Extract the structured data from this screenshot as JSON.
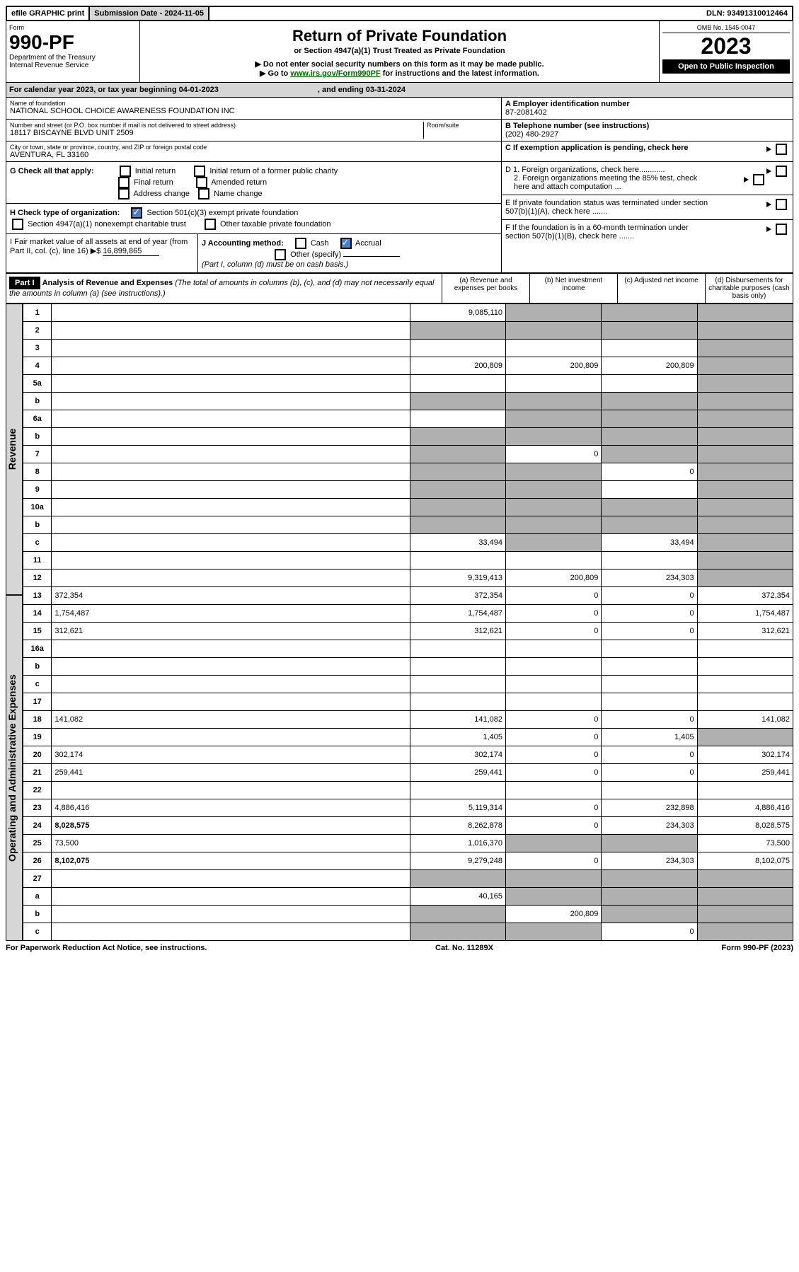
{
  "topbar": {
    "efile": "efile GRAPHIC print",
    "submission_label": "Submission Date - 2024-11-05",
    "dln": "DLN: 93491310012464"
  },
  "header": {
    "form_label": "Form",
    "form_num": "990-PF",
    "dept": "Department of the Treasury",
    "irs": "Internal Revenue Service",
    "title": "Return of Private Foundation",
    "subtitle": "or Section 4947(a)(1) Trust Treated as Private Foundation",
    "note1": "▶ Do not enter social security numbers on this form as it may be made public.",
    "note2_pre": "▶ Go to ",
    "note2_link": "www.irs.gov/Form990PF",
    "note2_post": " for instructions and the latest information.",
    "omb": "OMB No. 1545-0047",
    "year": "2023",
    "open": "Open to Public Inspection"
  },
  "cal": {
    "text": "For calendar year 2023, or tax year beginning 04-01-2023",
    "ending": ", and ending 03-31-2024"
  },
  "entity": {
    "name_label": "Name of foundation",
    "name": "NATIONAL SCHOOL CHOICE AWARENESS FOUNDATION INC",
    "addr_label": "Number and street (or P.O. box number if mail is not delivered to street address)",
    "addr": "18117 BISCAYNE BLVD UNIT 2509",
    "room_label": "Room/suite",
    "city_label": "City or town, state or province, country, and ZIP or foreign postal code",
    "city": "AVENTURA, FL  33160",
    "ein_label": "A Employer identification number",
    "ein": "87-2081402",
    "phone_label": "B Telephone number (see instructions)",
    "phone": "(202) 480-2927",
    "c_label": "C If exemption application is pending, check here"
  },
  "checks": {
    "g_label": "G Check all that apply:",
    "g_initial": "Initial return",
    "g_initial_former": "Initial return of a former public charity",
    "g_final": "Final return",
    "g_amended": "Amended return",
    "g_addr": "Address change",
    "g_name": "Name change",
    "h_label": "H Check type of organization:",
    "h_501c3": "Section 501(c)(3) exempt private foundation",
    "h_4947": "Section 4947(a)(1) nonexempt charitable trust",
    "h_other_tax": "Other taxable private foundation",
    "i_label": "I Fair market value of all assets at end of year (from Part II, col. (c), line 16) ▶$",
    "i_value": "16,899,865",
    "j_label": "J Accounting method:",
    "j_cash": "Cash",
    "j_accrual": "Accrual",
    "j_other": "Other (specify)",
    "j_note": "(Part I, column (d) must be on cash basis.)",
    "d1": "D 1. Foreign organizations, check here............",
    "d2": "2. Foreign organizations meeting the 85% test, check here and attach computation ...",
    "e": "E  If private foundation status was terminated under section 507(b)(1)(A), check here .......",
    "f": "F  If the foundation is in a 60-month termination under section 507(b)(1)(B), check here .......",
    "marker": "▶"
  },
  "part1": {
    "label": "Part I",
    "title": "Analysis of Revenue and Expenses",
    "title_note": " (The total of amounts in columns (b), (c), and (d) may not necessarily equal the amounts in column (a) (see instructions).)",
    "cols": {
      "a": "(a) Revenue and expenses per books",
      "b": "(b) Net investment income",
      "c": "(c) Adjusted net income",
      "d": "(d) Disbursements for charitable purposes (cash basis only)"
    }
  },
  "sections": {
    "revenue": "Revenue",
    "opex": "Operating and Administrative Expenses"
  },
  "rows": [
    {
      "n": "1",
      "d": "",
      "a": "9,085,110",
      "b": "",
      "c": "",
      "shade_b": true,
      "shade_c": true,
      "shade_d": true
    },
    {
      "n": "2",
      "d": "",
      "a": "",
      "b": "",
      "c": "",
      "shade_a": true,
      "shade_b": true,
      "shade_c": true,
      "shade_d": true
    },
    {
      "n": "3",
      "d": "",
      "a": "",
      "b": "",
      "c": "",
      "shade_d": true
    },
    {
      "n": "4",
      "d": "",
      "a": "200,809",
      "b": "200,809",
      "c": "200,809",
      "shade_d": true
    },
    {
      "n": "5a",
      "d": "",
      "a": "",
      "b": "",
      "c": "",
      "shade_d": true
    },
    {
      "n": "b",
      "d": "",
      "a": "",
      "b": "",
      "c": "",
      "shade_a": true,
      "shade_b": true,
      "shade_c": true,
      "shade_d": true
    },
    {
      "n": "6a",
      "d": "",
      "a": "",
      "b": "",
      "c": "",
      "shade_b": true,
      "shade_c": true,
      "shade_d": true
    },
    {
      "n": "b",
      "d": "",
      "a": "",
      "b": "",
      "c": "",
      "shade_a": true,
      "shade_b": true,
      "shade_c": true,
      "shade_d": true
    },
    {
      "n": "7",
      "d": "",
      "a": "",
      "b": "0",
      "c": "",
      "shade_a": true,
      "shade_c": true,
      "shade_d": true
    },
    {
      "n": "8",
      "d": "",
      "a": "",
      "b": "",
      "c": "0",
      "shade_a": true,
      "shade_b": true,
      "shade_d": true
    },
    {
      "n": "9",
      "d": "",
      "a": "",
      "b": "",
      "c": "",
      "shade_a": true,
      "shade_b": true,
      "shade_d": true
    },
    {
      "n": "10a",
      "d": "",
      "a": "",
      "b": "",
      "c": "",
      "shade_a": true,
      "shade_b": true,
      "shade_c": true,
      "shade_d": true
    },
    {
      "n": "b",
      "d": "",
      "a": "",
      "b": "",
      "c": "",
      "shade_a": true,
      "shade_b": true,
      "shade_c": true,
      "shade_d": true
    },
    {
      "n": "c",
      "d": "",
      "a": "33,494",
      "b": "",
      "c": "33,494",
      "shade_b": true,
      "shade_d": true
    },
    {
      "n": "11",
      "d": "",
      "a": "",
      "b": "",
      "c": "",
      "shade_d": true
    },
    {
      "n": "12",
      "d": "",
      "a": "9,319,413",
      "b": "200,809",
      "c": "234,303",
      "bold": true,
      "shade_d": true
    },
    {
      "n": "13",
      "d": "372,354",
      "a": "372,354",
      "b": "0",
      "c": "0"
    },
    {
      "n": "14",
      "d": "1,754,487",
      "a": "1,754,487",
      "b": "0",
      "c": "0"
    },
    {
      "n": "15",
      "d": "312,621",
      "a": "312,621",
      "b": "0",
      "c": "0"
    },
    {
      "n": "16a",
      "d": "",
      "a": "",
      "b": "",
      "c": ""
    },
    {
      "n": "b",
      "d": "",
      "a": "",
      "b": "",
      "c": ""
    },
    {
      "n": "c",
      "d": "",
      "a": "",
      "b": "",
      "c": ""
    },
    {
      "n": "17",
      "d": "",
      "a": "",
      "b": "",
      "c": ""
    },
    {
      "n": "18",
      "d": "141,082",
      "a": "141,082",
      "b": "0",
      "c": "0"
    },
    {
      "n": "19",
      "d": "",
      "a": "1,405",
      "b": "0",
      "c": "1,405",
      "shade_d": true
    },
    {
      "n": "20",
      "d": "302,174",
      "a": "302,174",
      "b": "0",
      "c": "0"
    },
    {
      "n": "21",
      "d": "259,441",
      "a": "259,441",
      "b": "0",
      "c": "0"
    },
    {
      "n": "22",
      "d": "",
      "a": "",
      "b": "",
      "c": ""
    },
    {
      "n": "23",
      "d": "4,886,416",
      "a": "5,119,314",
      "b": "0",
      "c": "232,898"
    },
    {
      "n": "24",
      "d": "8,028,575",
      "a": "8,262,878",
      "b": "0",
      "c": "234,303",
      "bold": true
    },
    {
      "n": "25",
      "d": "73,500",
      "a": "1,016,370",
      "b": "",
      "c": "",
      "shade_b": true,
      "shade_c": true
    },
    {
      "n": "26",
      "d": "8,102,075",
      "a": "9,279,248",
      "b": "0",
      "c": "234,303",
      "bold": true
    },
    {
      "n": "27",
      "d": "",
      "a": "",
      "b": "",
      "c": "",
      "shade_a": true,
      "shade_b": true,
      "shade_c": true,
      "shade_d": true
    },
    {
      "n": "a",
      "d": "",
      "a": "40,165",
      "b": "",
      "c": "",
      "bold": true,
      "shade_b": true,
      "shade_c": true,
      "shade_d": true
    },
    {
      "n": "b",
      "d": "",
      "a": "",
      "b": "200,809",
      "c": "",
      "bold": true,
      "shade_a": true,
      "shade_c": true,
      "shade_d": true
    },
    {
      "n": "c",
      "d": "",
      "a": "",
      "b": "",
      "c": "0",
      "bold": true,
      "shade_a": true,
      "shade_b": true,
      "shade_d": true
    }
  ],
  "footer": {
    "pra": "For Paperwork Reduction Act Notice, see instructions.",
    "cat": "Cat. No. 11289X",
    "form": "Form 990-PF (2023)"
  }
}
